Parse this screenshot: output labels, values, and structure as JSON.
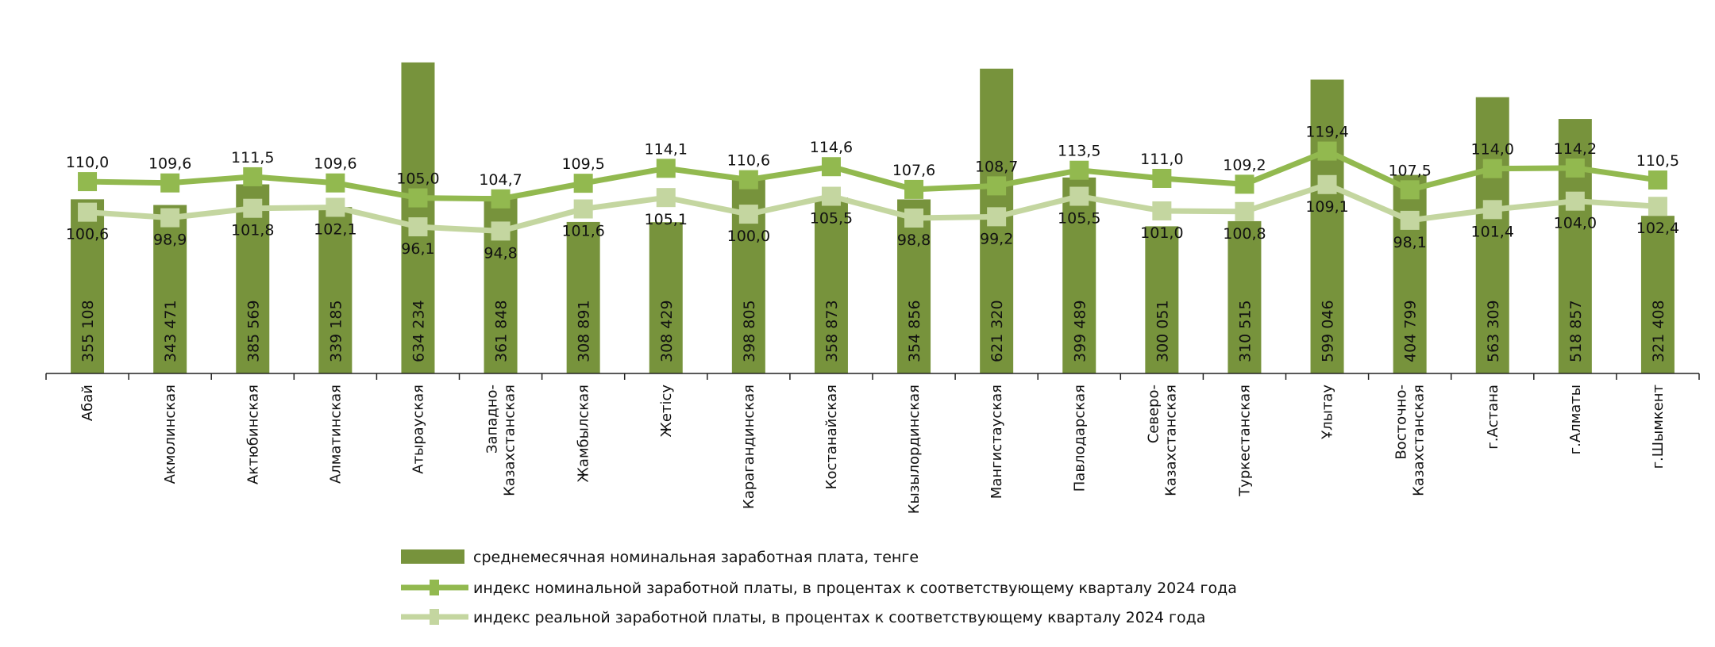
{
  "chart_data": {
    "type": "bar+line",
    "title": "",
    "categories": [
      "Абай",
      "Акмолинская",
      "Актюбинская",
      "Алматинская",
      "Атырауская",
      "Западно-\nКазахстанская",
      "Жамбылская",
      "Жетісу",
      "Карагандинская",
      "Костанайская",
      "Кызылординская",
      "Мангистауская",
      "Павлодарская",
      "Северо-\nКазахстанская",
      "Туркестанская",
      "Ұлытау",
      "Восточно-\nКазахстанская",
      "г.Астана",
      "г.Алматы",
      "г.Шымкент"
    ],
    "series": [
      {
        "name": "среднемесячная номинальная заработная плата, тенге",
        "kind": "bar",
        "color": "#77933C",
        "axis": "primary",
        "values": [
          355108,
          343471,
          385569,
          339185,
          634234,
          361848,
          308891,
          308429,
          398805,
          358873,
          354856,
          621320,
          399489,
          300051,
          310515,
          599046,
          404799,
          563309,
          518857,
          321408
        ],
        "labels": [
          "355 108",
          "343 471",
          "385 569",
          "339 185",
          "634 234",
          "361 848",
          "308 891",
          "308 429",
          "398 805",
          "358 873",
          "354 856",
          "621 320",
          "399 489",
          "300 051",
          "310 515",
          "599 046",
          "404 799",
          "563 309",
          "518 857",
          "321 408"
        ]
      },
      {
        "name": "индекс номинальной заработной платы, в процентах к соответствующему кварталу 2024 года",
        "kind": "line",
        "color": "#92B94F",
        "axis": "secondary",
        "values": [
          110.0,
          109.6,
          111.5,
          109.6,
          105.0,
          104.7,
          109.5,
          114.1,
          110.6,
          114.6,
          107.6,
          108.7,
          113.5,
          111.0,
          109.2,
          119.4,
          107.5,
          114.0,
          114.2,
          110.5
        ],
        "labels": [
          "110,0",
          "109,6",
          "111,5",
          "109,6",
          "105,0",
          "104,7",
          "109,5",
          "114,1",
          "110,6",
          "114,6",
          "107,6",
          "108,7",
          "113,5",
          "111,0",
          "109,2",
          "119,4",
          "107,5",
          "114,0",
          "114,2",
          "110,5"
        ]
      },
      {
        "name": "индекс реальной заработной платы, в процентах к соответствующему кварталу 2024 года",
        "kind": "line",
        "color": "#C4D6A0",
        "axis": "secondary",
        "values": [
          100.6,
          98.9,
          101.8,
          102.1,
          96.1,
          94.8,
          101.6,
          105.1,
          100.0,
          105.5,
          98.8,
          99.2,
          105.5,
          101.0,
          100.8,
          109.1,
          98.1,
          101.4,
          104.0,
          102.4
        ],
        "labels": [
          "100,6",
          "98,9",
          "101,8",
          "102,1",
          "96,1",
          "94,8",
          "101,6",
          "105,1",
          "100,0",
          "105,5",
          "98,8",
          "99,2",
          "105,5",
          "101,0",
          "100,8",
          "109,1",
          "98,1",
          "101,4",
          "104,0",
          "102,4"
        ]
      }
    ],
    "ylim": [
      0,
      700000
    ],
    "y2lim": [
      51,
      156.6
    ],
    "y_axis_visible": false,
    "grid": false,
    "legend_position": "bottom"
  }
}
